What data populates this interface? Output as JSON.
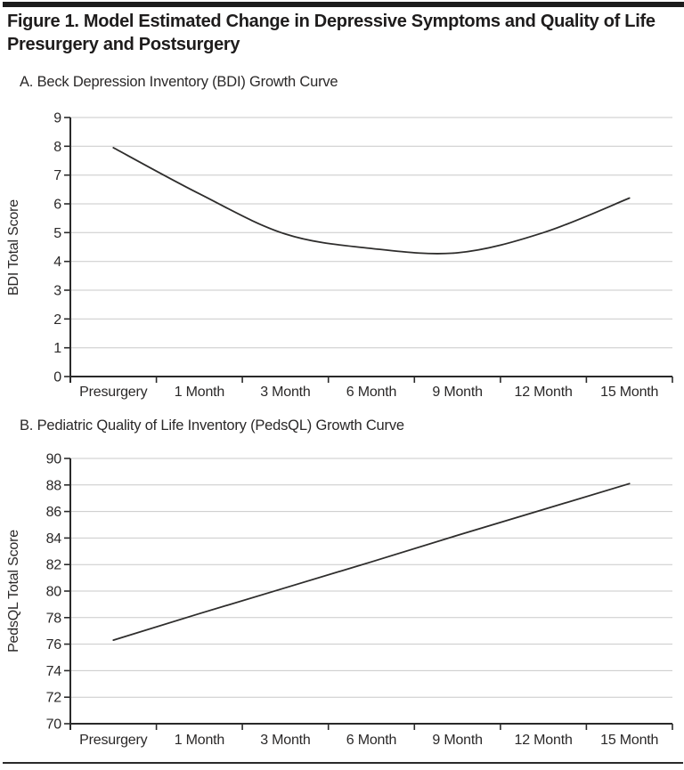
{
  "figure": {
    "title_lines": [
      "Figure 1. Model Estimated Change in Depressive Symptoms and Quality of Life",
      "Presurgery and Postsurgery"
    ]
  },
  "colors": {
    "text": "#2a2828",
    "curve": "#2e2d2c",
    "grid": "#c9c9c9",
    "axis": "#2a2a2a",
    "rule": "#1c1c1c"
  },
  "chart_data": [
    {
      "type": "line",
      "panel_label": "A. Beck Depression Inventory (BDI) Growth Curve",
      "ylabel": "BDI Total Score",
      "xlabel": "",
      "categories": [
        "Presurgery",
        "1 Month",
        "3 Month",
        "6 Month",
        "9 Month",
        "12 Month",
        "15 Month"
      ],
      "values": [
        7.95,
        6.35,
        4.95,
        4.45,
        4.3,
        5.0,
        6.2
      ],
      "ylim": [
        0,
        9
      ],
      "ytick_step": 1,
      "grid": true,
      "legend": false,
      "smooth": true,
      "curve_name": "bdi-growth-curve"
    },
    {
      "type": "line",
      "panel_label": "B. Pediatric Quality of Life Inventory (PedsQL) Growth Curve",
      "ylabel": "PedsQL Total Score",
      "xlabel": "",
      "categories": [
        "Presurgery",
        "1 Month",
        "3 Month",
        "6 Month",
        "9 Month",
        "12 Month",
        "15 Month"
      ],
      "values": [
        76.3,
        78.3,
        80.25,
        82.2,
        84.2,
        86.15,
        88.1
      ],
      "ylim": [
        70,
        90
      ],
      "ytick_step": 2,
      "grid": true,
      "legend": false,
      "smooth": false,
      "curve_name": "pedsql-growth-curve"
    }
  ]
}
